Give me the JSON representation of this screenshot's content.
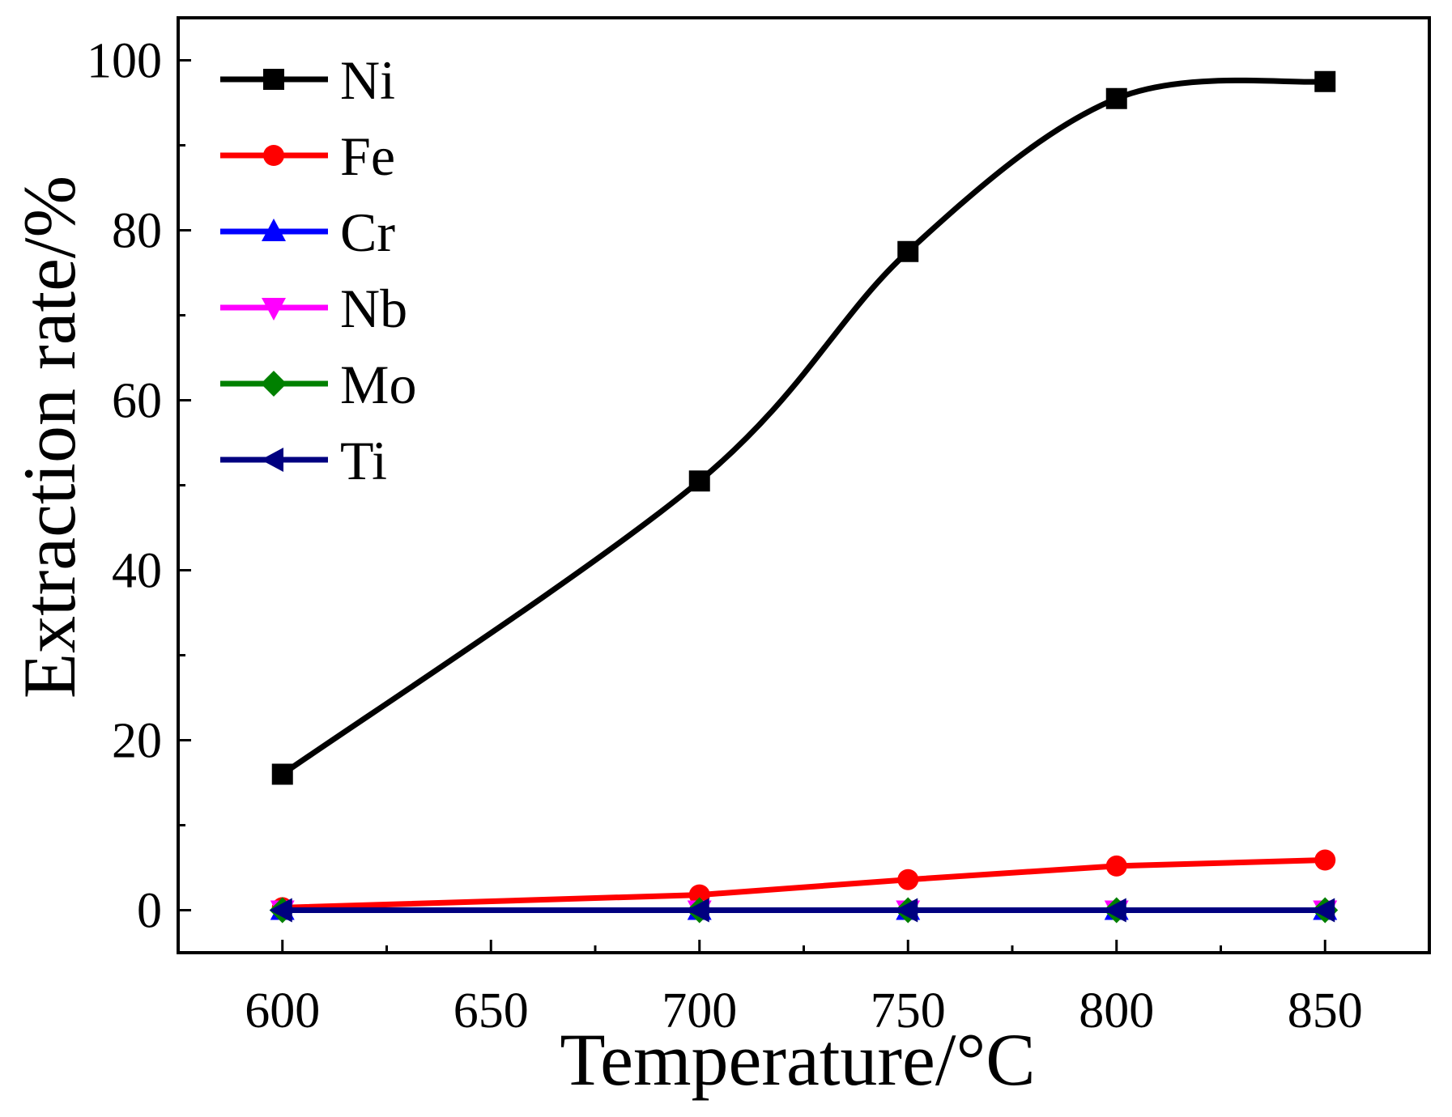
{
  "chart_data": {
    "type": "line",
    "title": "",
    "xlabel": "Temperature/°C",
    "ylabel": "Extraction rate/%",
    "x": [
      600,
      700,
      750,
      800,
      850
    ],
    "xlim": [
      575,
      875
    ],
    "ylim": [
      -5,
      105
    ],
    "xticks": [
      600,
      650,
      700,
      750,
      800,
      850
    ],
    "xtick_labels": [
      "600",
      "650",
      "700",
      "750",
      "800",
      "850"
    ],
    "yticks": [
      0,
      20,
      40,
      60,
      80,
      100
    ],
    "ytick_labels": [
      "0",
      "20",
      "40",
      "60",
      "80",
      "100"
    ],
    "legend_position": "top-left",
    "grid": false,
    "series": [
      {
        "name": "Ni",
        "color": "#000000",
        "marker": "square",
        "values": [
          16,
          50.5,
          77.5,
          95.5,
          97.5
        ]
      },
      {
        "name": "Fe",
        "color": "#ff0000",
        "marker": "circle",
        "values": [
          0.3,
          1.8,
          3.6,
          5.2,
          5.9
        ]
      },
      {
        "name": "Cr",
        "color": "#0000ff",
        "marker": "triangle-up",
        "values": [
          0,
          0,
          0,
          0,
          0
        ]
      },
      {
        "name": "Nb",
        "color": "#ff00ff",
        "marker": "triangle-down",
        "values": [
          0,
          0,
          0,
          0,
          0
        ]
      },
      {
        "name": "Mo",
        "color": "#008000",
        "marker": "diamond",
        "values": [
          0,
          0,
          0,
          0,
          0
        ]
      },
      {
        "name": "Ti",
        "color": "#000080",
        "marker": "triangle-left",
        "values": [
          0,
          0,
          0,
          0,
          0
        ]
      }
    ]
  }
}
